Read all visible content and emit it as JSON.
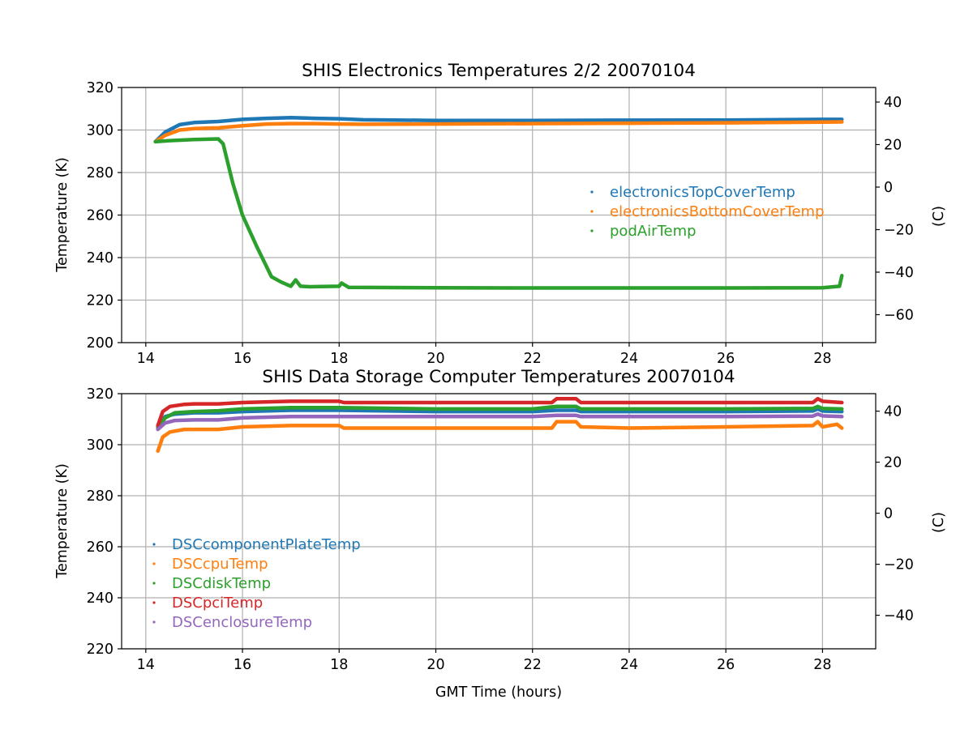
{
  "chart_data": [
    {
      "type": "line",
      "title": "SHIS Electronics Temperatures 2/2 20070104",
      "xlabel": "",
      "ylabel": "Temperature (K)",
      "y2label": "(C)",
      "xlim": [
        13.5,
        29.1
      ],
      "ylim": [
        200,
        320
      ],
      "y2lim": [
        -73.15,
        46.85
      ],
      "xticks": [
        14,
        16,
        18,
        20,
        22,
        24,
        26,
        28
      ],
      "yticks": [
        200,
        220,
        240,
        260,
        280,
        300,
        320
      ],
      "y2ticks": [
        -60,
        -40,
        -20,
        0,
        20,
        40
      ],
      "grid": true,
      "legend_position": "center-right",
      "series": [
        {
          "name": "electronicsTopCoverTemp",
          "color": "#1f77b4",
          "x": [
            14.2,
            14.4,
            14.7,
            15.0,
            15.5,
            16.0,
            16.5,
            17.0,
            17.5,
            18.0,
            18.5,
            20.0,
            22.0,
            24.0,
            26.0,
            28.0,
            28.4
          ],
          "y": [
            294.5,
            299.0,
            302.5,
            303.5,
            304.0,
            305.0,
            305.5,
            305.8,
            305.5,
            305.3,
            304.8,
            304.5,
            304.5,
            304.6,
            304.7,
            305.0,
            305.0
          ]
        },
        {
          "name": "electronicsBottomCoverTemp",
          "color": "#ff7f0e",
          "x": [
            14.2,
            14.4,
            14.7,
            15.0,
            15.5,
            16.0,
            16.5,
            17.0,
            17.5,
            18.0,
            18.5,
            20.0,
            22.0,
            24.0,
            26.0,
            28.0,
            28.4
          ],
          "y": [
            294.5,
            297.5,
            300.0,
            300.7,
            301.0,
            302.0,
            302.8,
            303.0,
            303.0,
            302.8,
            302.7,
            302.8,
            303.0,
            303.2,
            303.4,
            303.7,
            303.8
          ]
        },
        {
          "name": "podAirTemp",
          "color": "#2ca02c",
          "x": [
            14.2,
            14.5,
            15.0,
            15.5,
            15.6,
            15.8,
            16.0,
            16.3,
            16.6,
            16.8,
            17.0,
            17.1,
            17.2,
            17.4,
            18.0,
            18.05,
            18.2,
            20.0,
            22.0,
            24.0,
            26.0,
            28.0,
            28.35,
            28.4
          ],
          "y": [
            294.5,
            295.0,
            295.5,
            295.8,
            293.5,
            275.0,
            260.0,
            245.0,
            231.0,
            228.5,
            226.5,
            229.5,
            226.5,
            226.3,
            226.5,
            228.0,
            226.0,
            225.8,
            225.7,
            225.7,
            225.7,
            225.8,
            226.5,
            231.5
          ]
        }
      ]
    },
    {
      "type": "line",
      "title": "SHIS Data Storage Computer Temperatures 20070104",
      "xlabel": "GMT Time (hours)",
      "ylabel": "Temperature (K)",
      "y2label": "(C)",
      "xlim": [
        13.5,
        29.1
      ],
      "ylim": [
        220,
        320
      ],
      "y2lim": [
        -53.15,
        46.85
      ],
      "xticks": [
        14,
        16,
        18,
        20,
        22,
        24,
        26,
        28
      ],
      "yticks": [
        220,
        240,
        260,
        280,
        300,
        320
      ],
      "y2ticks": [
        -40,
        -20,
        0,
        20,
        40
      ],
      "grid": true,
      "legend_position": "center-left",
      "series": [
        {
          "name": "DSCcomponentPlateTemp",
          "color": "#1f77b4",
          "x": [
            14.25,
            14.4,
            14.6,
            15.0,
            15.5,
            16.0,
            17.0,
            18.0,
            20.0,
            22.0,
            22.5,
            22.9,
            23.0,
            24.0,
            26.0,
            27.8,
            27.9,
            28.0,
            28.4
          ],
          "y": [
            307.0,
            311.0,
            312.0,
            312.5,
            312.5,
            313.0,
            313.5,
            313.5,
            313.0,
            313.0,
            313.5,
            313.5,
            313.0,
            313.0,
            313.0,
            313.2,
            314.0,
            313.2,
            313.0
          ]
        },
        {
          "name": "DSCcpuTemp",
          "color": "#ff7f0e",
          "x": [
            14.25,
            14.35,
            14.5,
            14.8,
            15.0,
            15.5,
            16.0,
            17.0,
            18.0,
            18.1,
            20.0,
            22.0,
            22.4,
            22.5,
            22.9,
            23.0,
            24.0,
            26.0,
            27.8,
            27.9,
            28.0,
            28.3,
            28.4
          ],
          "y": [
            297.5,
            303.0,
            305.0,
            306.0,
            306.0,
            306.0,
            307.0,
            307.5,
            307.5,
            306.5,
            306.5,
            306.5,
            306.5,
            309.0,
            309.0,
            307.0,
            306.5,
            307.0,
            307.5,
            309.0,
            307.0,
            308.0,
            306.5
          ]
        },
        {
          "name": "DSCdiskTemp",
          "color": "#2ca02c",
          "x": [
            14.25,
            14.4,
            14.6,
            15.0,
            15.5,
            16.0,
            17.0,
            18.0,
            20.0,
            22.0,
            22.5,
            22.9,
            23.0,
            24.0,
            26.0,
            27.8,
            27.9,
            28.0,
            28.4
          ],
          "y": [
            306.5,
            310.5,
            312.5,
            313.0,
            313.3,
            314.0,
            314.5,
            314.5,
            314.0,
            314.0,
            315.0,
            315.0,
            314.0,
            314.0,
            314.0,
            314.2,
            315.0,
            314.2,
            314.0
          ]
        },
        {
          "name": "DSCpciTemp",
          "color": "#d62728",
          "x": [
            14.25,
            14.35,
            14.5,
            14.8,
            15.0,
            15.5,
            16.0,
            17.0,
            18.0,
            18.1,
            20.0,
            22.0,
            22.4,
            22.5,
            22.9,
            23.0,
            24.0,
            26.0,
            27.8,
            27.9,
            28.0,
            28.4
          ],
          "y": [
            307.5,
            313.0,
            315.0,
            315.8,
            316.0,
            316.0,
            316.5,
            317.0,
            317.0,
            316.5,
            316.5,
            316.5,
            316.5,
            318.0,
            318.0,
            316.5,
            316.5,
            316.5,
            316.5,
            318.0,
            317.0,
            316.5
          ]
        },
        {
          "name": "DSCenclosureTemp",
          "color": "#9467bd",
          "x": [
            14.25,
            14.4,
            14.6,
            15.0,
            15.5,
            16.0,
            17.0,
            18.0,
            20.0,
            22.0,
            22.5,
            22.9,
            23.0,
            24.0,
            26.0,
            27.8,
            27.9,
            28.0,
            28.4
          ],
          "y": [
            306.0,
            308.5,
            309.5,
            309.7,
            309.7,
            310.5,
            311.0,
            311.0,
            311.0,
            311.0,
            311.5,
            311.5,
            311.0,
            311.0,
            311.0,
            311.2,
            312.0,
            311.3,
            311.0
          ]
        }
      ]
    }
  ]
}
